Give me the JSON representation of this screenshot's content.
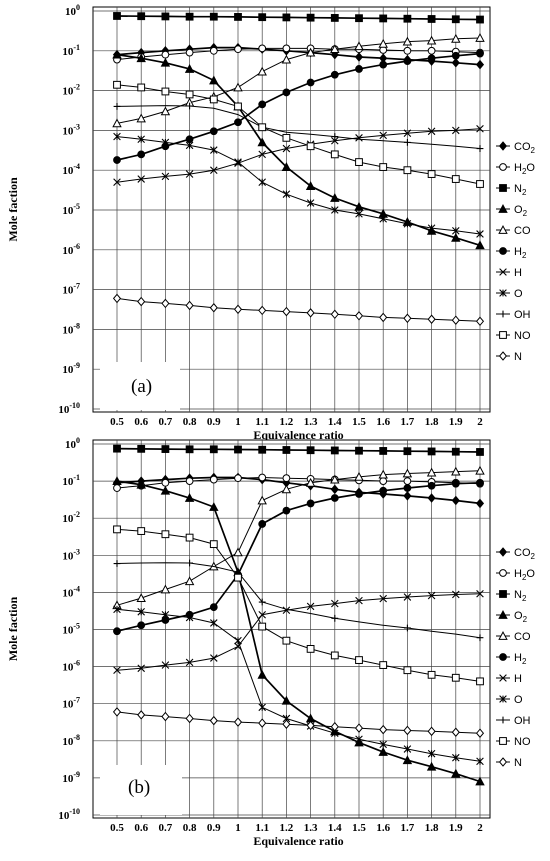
{
  "ylabel": "Mole faction",
  "xlabel": "Equivalence ratio",
  "x_ticks": [
    "0.5",
    "0.6",
    "0.7",
    "0.8",
    "0.9",
    "1",
    "1.1",
    "1.2",
    "1.3",
    "1.4",
    "1.5",
    "1.6",
    "1.7",
    "1.8",
    "1.9",
    "2"
  ],
  "y_ticks": [
    {
      "base": "10",
      "exp": "0"
    },
    {
      "base": "10",
      "exp": "-1"
    },
    {
      "base": "10",
      "exp": "-2"
    },
    {
      "base": "10",
      "exp": "-3"
    },
    {
      "base": "10",
      "exp": "-4"
    },
    {
      "base": "10",
      "exp": "-5"
    },
    {
      "base": "10",
      "exp": "-6"
    },
    {
      "base": "10",
      "exp": "-7"
    },
    {
      "base": "10",
      "exp": "-8"
    },
    {
      "base": "10",
      "exp": "-9"
    },
    {
      "base": "10",
      "exp": "-10"
    }
  ],
  "legend": [
    {
      "main": "CO",
      "sub": "2",
      "marker": "diamond-filled"
    },
    {
      "main": "H",
      "sub": "2",
      "tail": "O",
      "marker": "circle-open"
    },
    {
      "main": "N",
      "sub": "2",
      "marker": "square-filled"
    },
    {
      "main": "O",
      "sub": "2",
      "marker": "triangle-filled"
    },
    {
      "main": "CO",
      "marker": "triangle-open"
    },
    {
      "main": "H",
      "sub": "2",
      "marker": "circle-filled"
    },
    {
      "main": "H",
      "marker": "x"
    },
    {
      "main": "O",
      "marker": "star"
    },
    {
      "main": "OH",
      "marker": "plus"
    },
    {
      "main": "NO",
      "marker": "square-open"
    },
    {
      "main": "N",
      "marker": "diamond-open"
    }
  ],
  "chart_data": [
    {
      "panel_label": "(a)",
      "type": "line",
      "y_scale": "log",
      "ylim": [
        1e-10,
        1
      ],
      "xlabel": "Equivalence ratio",
      "ylabel": "Mole faction",
      "x": [
        0.5,
        0.6,
        0.7,
        0.8,
        0.9,
        1.0,
        1.1,
        1.2,
        1.3,
        1.4,
        1.5,
        1.6,
        1.7,
        1.8,
        1.9,
        2.0
      ],
      "series": [
        {
          "name": "CO2",
          "marker": "diamond-filled",
          "values": [
            0.08,
            0.09,
            0.1,
            0.11,
            0.12,
            0.12,
            0.11,
            0.1,
            0.09,
            0.08,
            0.07,
            0.065,
            0.06,
            0.055,
            0.05,
            0.045
          ]
        },
        {
          "name": "H2O",
          "marker": "circle-open",
          "values": [
            0.06,
            0.07,
            0.08,
            0.09,
            0.1,
            0.11,
            0.115,
            0.115,
            0.115,
            0.11,
            0.11,
            0.105,
            0.1,
            0.1,
            0.095,
            0.09
          ]
        },
        {
          "name": "N2",
          "marker": "square-filled",
          "values": [
            0.75,
            0.74,
            0.73,
            0.72,
            0.72,
            0.71,
            0.7,
            0.69,
            0.68,
            0.67,
            0.66,
            0.65,
            0.64,
            0.63,
            0.62,
            0.61
          ]
        },
        {
          "name": "O2",
          "marker": "triangle-filled",
          "values": [
            0.08,
            0.065,
            0.05,
            0.035,
            0.018,
            0.004,
            0.0005,
            0.00012,
            4e-05,
            2e-05,
            1.2e-05,
            8e-06,
            5e-06,
            3e-06,
            2e-06,
            1.3e-06
          ]
        },
        {
          "name": "CO",
          "marker": "triangle-open",
          "values": [
            0.0015,
            0.002,
            0.003,
            0.005,
            0.007,
            0.012,
            0.03,
            0.06,
            0.09,
            0.11,
            0.13,
            0.15,
            0.17,
            0.18,
            0.2,
            0.21
          ]
        },
        {
          "name": "H2",
          "marker": "circle-filled",
          "values": [
            0.00018,
            0.00025,
            0.0004,
            0.0006,
            0.00095,
            0.0016,
            0.0045,
            0.009,
            0.016,
            0.025,
            0.035,
            0.045,
            0.055,
            0.065,
            0.075,
            0.085
          ]
        },
        {
          "name": "H",
          "marker": "x",
          "values": [
            5e-05,
            6e-05,
            7e-05,
            8e-05,
            0.0001,
            0.00015,
            0.00025,
            0.00035,
            0.00045,
            0.00055,
            0.00065,
            0.00075,
            0.00085,
            0.00095,
            0.001,
            0.0011
          ]
        },
        {
          "name": "O",
          "marker": "star",
          "values": [
            0.0007,
            0.0006,
            0.0005,
            0.00042,
            0.00032,
            0.00016,
            5e-05,
            2.5e-05,
            1.5e-05,
            1e-05,
            8e-06,
            6e-06,
            4.5e-06,
            3.5e-06,
            3e-06,
            2.5e-06
          ]
        },
        {
          "name": "OH",
          "marker": "plus",
          "values": [
            0.004,
            0.0041,
            0.0042,
            0.0041,
            0.0036,
            0.0025,
            0.0012,
            0.0009,
            0.0008,
            0.0007,
            0.0006,
            0.00055,
            0.0005,
            0.00045,
            0.0004,
            0.00035
          ]
        },
        {
          "name": "NO",
          "marker": "square-open",
          "values": [
            0.014,
            0.012,
            0.0095,
            0.008,
            0.006,
            0.004,
            0.0012,
            0.00065,
            0.0004,
            0.00025,
            0.00016,
            0.00012,
            0.0001,
            8e-05,
            6e-05,
            4.5e-05
          ]
        },
        {
          "name": "N",
          "marker": "diamond-open",
          "values": [
            6e-08,
            5e-08,
            4.5e-08,
            4e-08,
            3.5e-08,
            3.2e-08,
            3e-08,
            2.8e-08,
            2.6e-08,
            2.4e-08,
            2.2e-08,
            2e-08,
            1.9e-08,
            1.8e-08,
            1.7e-08,
            1.6e-08
          ]
        }
      ]
    },
    {
      "panel_label": "(b)",
      "type": "line",
      "y_scale": "log",
      "ylim": [
        1e-10,
        1
      ],
      "xlabel": "Equivalence ratio",
      "ylabel": "Mole faction",
      "x": [
        0.5,
        0.6,
        0.7,
        0.8,
        0.9,
        1.0,
        1.1,
        1.2,
        1.3,
        1.4,
        1.5,
        1.6,
        1.7,
        1.8,
        1.9,
        2.0
      ],
      "series": [
        {
          "name": "CO2",
          "marker": "diamond-filled",
          "values": [
            0.09,
            0.1,
            0.11,
            0.12,
            0.125,
            0.125,
            0.11,
            0.09,
            0.075,
            0.06,
            0.05,
            0.045,
            0.04,
            0.035,
            0.03,
            0.025
          ]
        },
        {
          "name": "H2O",
          "marker": "circle-open",
          "values": [
            0.065,
            0.075,
            0.09,
            0.1,
            0.11,
            0.12,
            0.125,
            0.12,
            0.115,
            0.11,
            0.105,
            0.1,
            0.1,
            0.095,
            0.09,
            0.085
          ]
        },
        {
          "name": "N2",
          "marker": "square-filled",
          "values": [
            0.75,
            0.74,
            0.73,
            0.72,
            0.72,
            0.71,
            0.7,
            0.69,
            0.68,
            0.67,
            0.66,
            0.65,
            0.64,
            0.63,
            0.62,
            0.61
          ]
        },
        {
          "name": "O2",
          "marker": "triangle-filled",
          "values": [
            0.1,
            0.08,
            0.055,
            0.035,
            0.02,
            0.00035,
            6e-07,
            1.2e-07,
            4e-08,
            1.8e-08,
            9e-09,
            5e-09,
            3e-09,
            2e-09,
            1.3e-09,
            8e-10
          ]
        },
        {
          "name": "CO",
          "marker": "triangle-open",
          "values": [
            4.5e-05,
            7e-05,
            0.00012,
            0.0002,
            0.0005,
            0.0012,
            0.03,
            0.06,
            0.09,
            0.11,
            0.13,
            0.15,
            0.16,
            0.17,
            0.18,
            0.19
          ]
        },
        {
          "name": "H2",
          "marker": "circle-filled",
          "values": [
            9e-06,
            1.3e-05,
            1.8e-05,
            2.5e-05,
            4e-05,
            0.0003,
            0.007,
            0.016,
            0.025,
            0.035,
            0.045,
            0.055,
            0.065,
            0.075,
            0.085,
            0.09
          ]
        },
        {
          "name": "H",
          "marker": "x",
          "values": [
            8e-07,
            9e-07,
            1.1e-06,
            1.3e-06,
            1.7e-06,
            3.5e-06,
            2.5e-05,
            3.3e-05,
            4.2e-05,
            5e-05,
            6e-05,
            6.8e-05,
            7.5e-05,
            8.2e-05,
            8.8e-05,
            9.2e-05
          ]
        },
        {
          "name": "O",
          "marker": "star",
          "values": [
            3.5e-05,
            3e-05,
            2.5e-05,
            2.1e-05,
            1.5e-05,
            5e-06,
            8e-08,
            4e-08,
            2.5e-08,
            1.6e-08,
            1.1e-08,
            8e-09,
            6e-09,
            4.5e-09,
            3.5e-09,
            2.8e-09
          ]
        },
        {
          "name": "OH",
          "marker": "plus",
          "values": [
            0.0006,
            0.00062,
            0.00063,
            0.00062,
            0.0005,
            0.00035,
            5.5e-05,
            3.5e-05,
            2.7e-05,
            2e-05,
            1.6e-05,
            1.3e-05,
            1.1e-05,
            9e-06,
            7.5e-06,
            6e-06
          ]
        },
        {
          "name": "NO",
          "marker": "square-open",
          "values": [
            0.005,
            0.0045,
            0.0037,
            0.003,
            0.002,
            0.00025,
            1.2e-05,
            5e-06,
            3e-06,
            2e-06,
            1.5e-06,
            1.1e-06,
            8e-07,
            6e-07,
            5e-07,
            4e-07
          ]
        },
        {
          "name": "N",
          "marker": "diamond-open",
          "values": [
            6e-08,
            5e-08,
            4.5e-08,
            4e-08,
            3.5e-08,
            3.2e-08,
            3e-08,
            2.8e-08,
            2.6e-08,
            2.4e-08,
            2.2e-08,
            2e-08,
            1.9e-08,
            1.8e-08,
            1.7e-08,
            1.6e-08
          ]
        }
      ]
    }
  ]
}
